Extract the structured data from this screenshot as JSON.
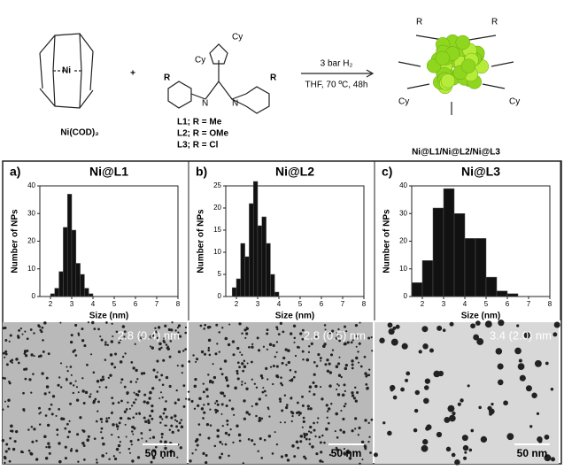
{
  "scheme": {
    "reagent": "Ni(COD)₂",
    "plus": "+",
    "ligands": [
      "L1; R = Me",
      "L2; R = OMe",
      "L3; R = Cl"
    ],
    "conditions": [
      "3 bar H₂",
      "THF, 70 ºC, 48h"
    ],
    "product": "Ni@L1/Ni@L2/Ni@L3",
    "atoms": {
      "ni": "Ni",
      "r": "R",
      "cy": "Cy",
      "n": "N"
    }
  },
  "chart_data": [
    {
      "type": "histogram",
      "panel_label": "a)",
      "title": "Ni@L1",
      "x_label": "Size (nm)",
      "y_label": "Number of NPs",
      "bins": [
        2.0,
        2.2,
        2.4,
        2.6,
        2.8,
        3.0,
        3.2,
        3.4,
        3.6,
        3.8,
        4.0
      ],
      "values": [
        1,
        3,
        9,
        25,
        37,
        24,
        12,
        8,
        3,
        1
      ],
      "color": "#111111",
      "xlim": [
        1.5,
        8
      ],
      "ylim": [
        0,
        40
      ],
      "xticks": [
        2,
        3,
        4,
        5,
        6,
        7,
        8
      ],
      "yticks": [
        0,
        10,
        20,
        30,
        40
      ],
      "size_label": "2.8 (0.4) nm",
      "scale_label": "50 nm"
    },
    {
      "type": "histogram",
      "panel_label": "b)",
      "title": "Ni@L2",
      "x_label": "Size (nm)",
      "y_label": "Number of NPs",
      "bins": [
        1.8,
        2.0,
        2.2,
        2.4,
        2.6,
        2.8,
        3.0,
        3.2,
        3.4,
        3.6,
        3.8,
        4.0
      ],
      "values": [
        2,
        4,
        12,
        9,
        21,
        26,
        16,
        18,
        12,
        5,
        1
      ],
      "color": "#111111",
      "xlim": [
        1.5,
        8
      ],
      "ylim": [
        0,
        25
      ],
      "xticks": [
        2,
        3,
        4,
        5,
        6,
        7,
        8
      ],
      "yticks": [
        0,
        5,
        10,
        15,
        20,
        25
      ],
      "size_label": "2.8 (0.5) nm",
      "scale_label": "50 nm"
    },
    {
      "type": "histogram",
      "panel_label": "c)",
      "title": "Ni@L3",
      "x_label": "Size (nm)",
      "y_label": "Number of NPs",
      "bins": [
        1.5,
        2.0,
        2.5,
        3.0,
        3.5,
        4.0,
        4.5,
        5.0,
        5.5,
        6.0,
        6.5
      ],
      "values": [
        5,
        13,
        32,
        39,
        30,
        21,
        21,
        7,
        2,
        1
      ],
      "color": "#111111",
      "xlim": [
        1.5,
        8
      ],
      "ylim": [
        0,
        40
      ],
      "xticks": [
        2,
        3,
        4,
        5,
        6,
        7,
        8
      ],
      "yticks": [
        0,
        10,
        20,
        30,
        40
      ],
      "size_label": "3.4 (2.0) nm",
      "scale_label": "50 nm"
    }
  ]
}
